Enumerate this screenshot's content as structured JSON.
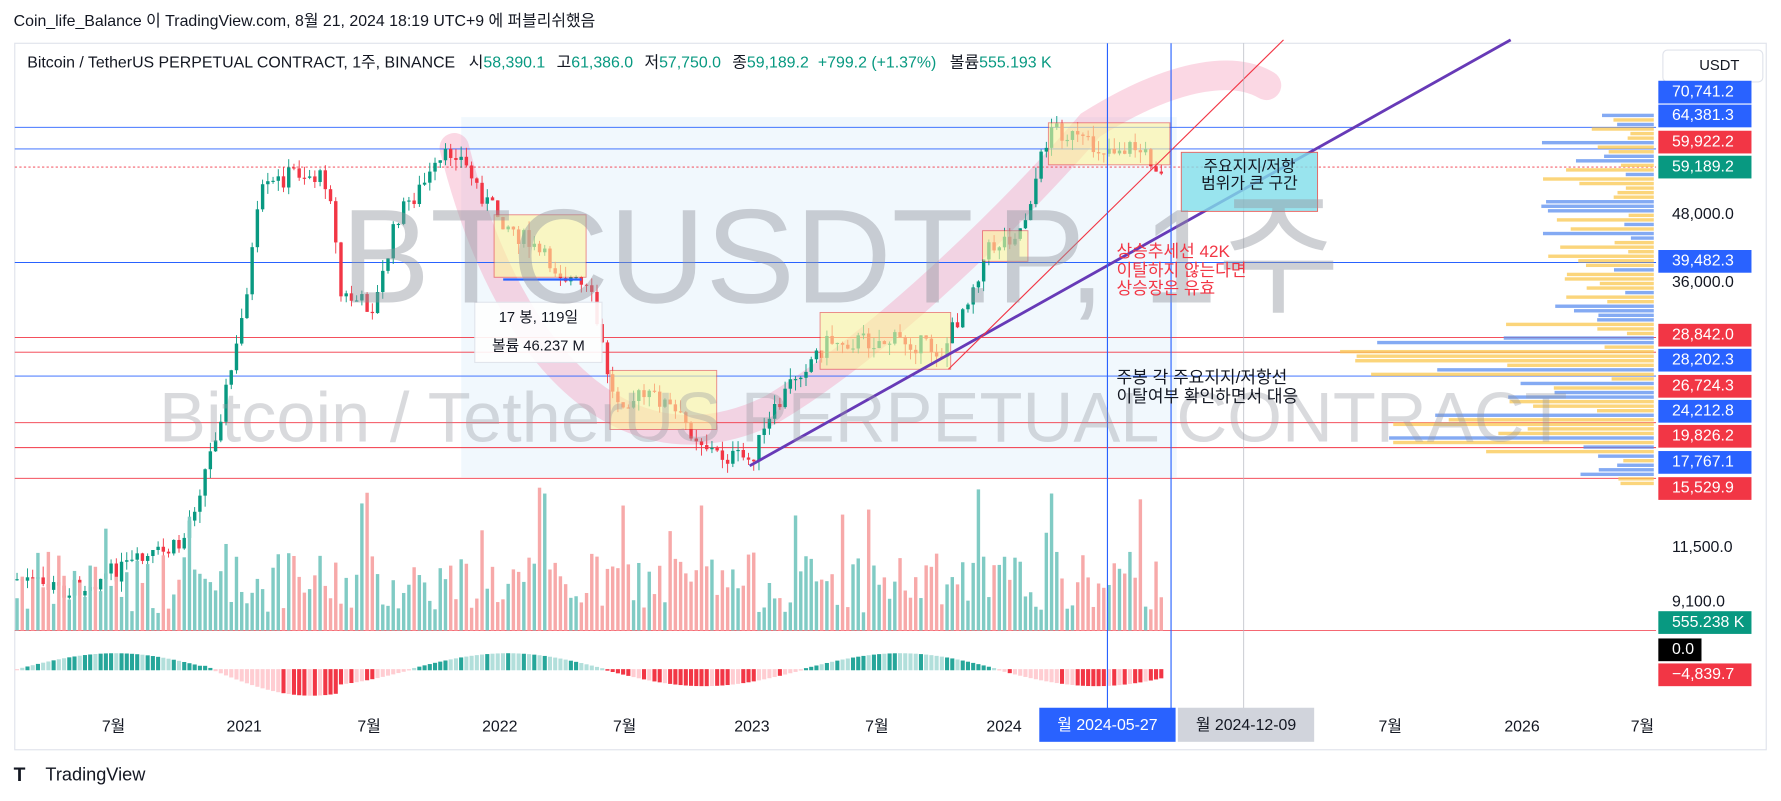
{
  "header": {
    "publish": "Coin_life_Balance 이 TradingView.com, 8월 21, 2024 18:19 UTC+9 에 퍼블리쉬했음",
    "symbol": "Bitcoin / TetherUS PERPETUAL CONTRACT, 1주, BINANCE",
    "ohlc": [
      {
        "label": "시",
        "value": "58,390.1"
      },
      {
        "label": "고",
        "value": "61,386.0"
      },
      {
        "label": "저",
        "value": "57,750.0"
      },
      {
        "label": "종",
        "value": "59,189.2"
      }
    ],
    "change": "+799.2 (+1.37%)",
    "volume_label": "볼륨",
    "volume": "555.193 K",
    "currency": "USDT"
  },
  "watermark": {
    "ticker": "BTCUSDT.P, 1주",
    "name": "Bitcoin / TetherUS PERPETUAL CONTRACT"
  },
  "price_axis": [
    {
      "text": "70,741.2",
      "style": "blue"
    },
    {
      "text": "64,381.3",
      "style": "blue"
    },
    {
      "text": "59,922.2",
      "style": "red"
    },
    {
      "text": "59,189.2",
      "style": "teal"
    },
    {
      "text": "48,000.0",
      "style": "plain"
    },
    {
      "text": "39,482.3",
      "style": "blue"
    },
    {
      "text": "36,000.0",
      "style": "plain"
    },
    {
      "text": "28,842.0",
      "style": "red"
    },
    {
      "text": "28,202.3",
      "style": "blue"
    },
    {
      "text": "26,724.3",
      "style": "red"
    },
    {
      "text": "24,212.8",
      "style": "blue"
    },
    {
      "text": "19,826.2",
      "style": "red"
    },
    {
      "text": "17,767.1",
      "style": "blue"
    },
    {
      "text": "15,529.9",
      "style": "red"
    },
    {
      "text": "11,500.0",
      "style": "plain"
    },
    {
      "text": "9,100.0",
      "style": "plain"
    },
    {
      "text": "555.238 K",
      "style": "teal"
    },
    {
      "text": "0.0",
      "style": "black"
    },
    {
      "text": "−4,839.7",
      "style": "red"
    }
  ],
  "time_axis": [
    "7월",
    "2021",
    "7월",
    "2022",
    "7월",
    "2023",
    "7월",
    "2024",
    "7월",
    "2026",
    "7월"
  ],
  "time_markers": [
    "월 2024-05-27",
    "월 2024-12-09"
  ],
  "annotations": {
    "range_box": [
      "주요지지/저항",
      "범위가 큰 구간"
    ],
    "trend": [
      "상승추세선 42K",
      "이탈하지 않는다면",
      "상승장은 유효"
    ],
    "weekly": [
      "주봉 각 주요지지/저항선",
      "이탈여부 확인하면서 대응"
    ],
    "measure": [
      "17 봉, 119일",
      "볼륨 46.237 M"
    ]
  },
  "footer": {
    "brand": "TradingView"
  }
}
